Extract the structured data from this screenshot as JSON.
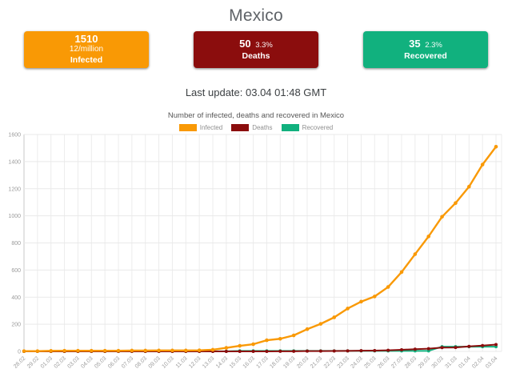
{
  "page": {
    "title": "Mexico"
  },
  "cards": {
    "infected": {
      "value": "1510",
      "per_million": "12/million",
      "label": "Infected",
      "color": "#f99905"
    },
    "deaths": {
      "value": "50",
      "percent": "3.3%",
      "label": "Deaths",
      "color": "#8b0d0d"
    },
    "recovered": {
      "value": "35",
      "percent": "2.3%",
      "label": "Recovered",
      "color": "#11b17e"
    }
  },
  "last_update": "Last update: 03.04 01:48 GMT",
  "chart_data": {
    "type": "line",
    "title": "Number of infected, deaths and recovered in Mexico",
    "categories": [
      "28.02",
      "29.02",
      "01.03",
      "02.03",
      "03.03",
      "04.03",
      "05.03",
      "06.03",
      "07.03",
      "08.03",
      "09.03",
      "10.03",
      "11.03",
      "12.03",
      "13.03",
      "14.03",
      "15.03",
      "16.03",
      "17.03",
      "18.03",
      "19.03",
      "20.03",
      "21.03",
      "22.03",
      "23.03",
      "24.03",
      "25.03",
      "26.03",
      "27.03",
      "28.03",
      "29.03",
      "30.03",
      "31.03",
      "01.04",
      "02.04",
      "03.04"
    ],
    "series": [
      {
        "name": "Infected",
        "color": "#f99905",
        "values": [
          2,
          2,
          4,
          5,
          5,
          5,
          5,
          5,
          6,
          6,
          7,
          7,
          7,
          8,
          12,
          26,
          41,
          53,
          82,
          93,
          118,
          164,
          203,
          251,
          316,
          367,
          405,
          475,
          585,
          717,
          848,
          993,
          1094,
          1215,
          1378,
          1510
        ]
      },
      {
        "name": "Deaths",
        "color": "#8b0d0d",
        "values": [
          0,
          0,
          0,
          0,
          0,
          0,
          0,
          0,
          0,
          0,
          0,
          0,
          0,
          0,
          0,
          0,
          0,
          0,
          0,
          1,
          1,
          2,
          2,
          3,
          4,
          5,
          6,
          8,
          12,
          16,
          20,
          28,
          29,
          37,
          43,
          50
        ]
      },
      {
        "name": "Recovered",
        "color": "#11b17e",
        "values": [
          0,
          0,
          0,
          0,
          0,
          0,
          0,
          0,
          0,
          0,
          0,
          0,
          0,
          0,
          1,
          1,
          4,
          4,
          4,
          4,
          4,
          4,
          4,
          4,
          4,
          4,
          4,
          4,
          4,
          4,
          4,
          35,
          35,
          35,
          35,
          35
        ]
      }
    ],
    "ylim": [
      0,
      1600
    ],
    "yticks": [
      0,
      200,
      400,
      600,
      800,
      1000,
      1200,
      1400,
      1600
    ],
    "grid": true,
    "legend_position": "top"
  }
}
